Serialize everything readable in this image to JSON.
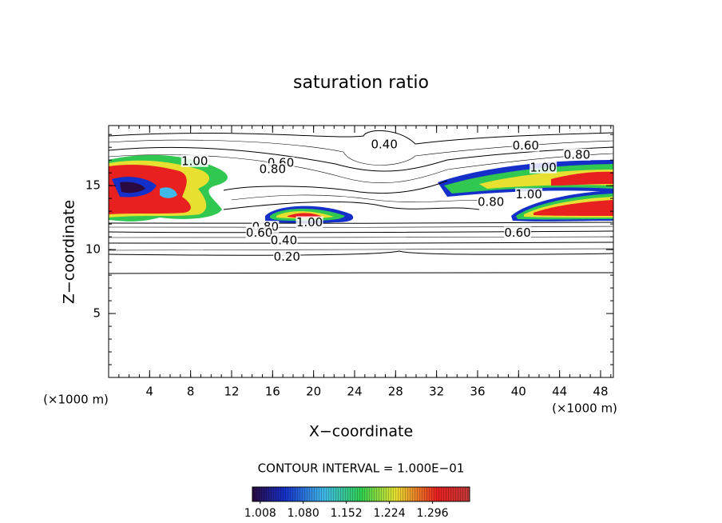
{
  "chart_data": {
    "type": "contour",
    "title": "saturation ratio",
    "x_label": "X−coordinate",
    "y_label": "Z−coordinate",
    "x_unit_label": "(×1000 m)",
    "y_unit_label": "(×1000 m)",
    "xlim": [
      0,
      49.25
    ],
    "ylim": [
      0,
      19.7
    ],
    "xticks": [
      4,
      8,
      12,
      16,
      20,
      24,
      28,
      32,
      36,
      40,
      44,
      48
    ],
    "yticks": [
      5,
      10,
      15
    ],
    "contour_interval_label": "CONTOUR INTERVAL = 1.000E−01",
    "contour_labels": [
      {
        "value": 0.4,
        "label": "0.40",
        "x": 26.9,
        "y": 18.2
      },
      {
        "value": 0.6,
        "label": "0.60",
        "x": 40.7,
        "y": 18.1
      },
      {
        "value": 0.8,
        "label": "0.80",
        "x": 45.7,
        "y": 17.4
      },
      {
        "value": 1,
        "label": "1.00",
        "x": 8.4,
        "y": 16.9
      },
      {
        "value": 0.6,
        "label": "0.60",
        "x": 16.8,
        "y": 16.75
      },
      {
        "value": 0.8,
        "label": "0.80",
        "x": 16.0,
        "y": 16.25
      },
      {
        "value": 1,
        "label": "1.00",
        "x": 42.4,
        "y": 16.4
      },
      {
        "value": 1,
        "label": "1.00",
        "x": 41.0,
        "y": 14.3
      },
      {
        "value": 0.8,
        "label": "0.80",
        "x": 37.3,
        "y": 13.7
      },
      {
        "value": 0.8,
        "label": "0.80",
        "x": 15.3,
        "y": 11.75
      },
      {
        "value": 0.6,
        "label": "0.60",
        "x": 14.7,
        "y": 11.3
      },
      {
        "value": 1,
        "label": "1.00",
        "x": 19.6,
        "y": 12.1
      },
      {
        "value": 0.6,
        "label": "0.60",
        "x": 39.9,
        "y": 11.3
      },
      {
        "value": 0.4,
        "label": "0.40",
        "x": 17.1,
        "y": 10.7
      },
      {
        "value": 0.2,
        "label": "0.20",
        "x": 17.4,
        "y": 9.4
      }
    ],
    "colorbar_lim": [
      0.995,
      1.358
    ],
    "colorbar_ticks": [
      1.008,
      {
        "value": 1.08,
        "label": "1.080"
      },
      1.152,
      1.224,
      1.296
    ]
  }
}
